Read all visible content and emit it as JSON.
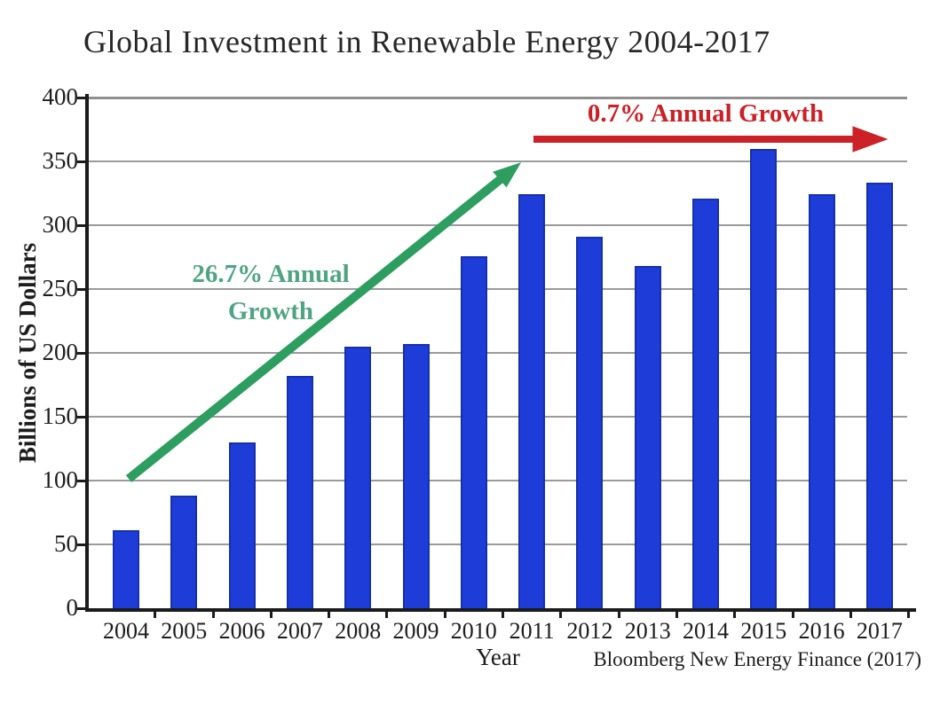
{
  "title": "Global Investment in Renewable Energy 2004-2017",
  "colors": {
    "bar": "#1e3dd8",
    "bar_border": "#1630ac",
    "green_arrow": "#2d9e60",
    "green_text": "#4fa583",
    "red": "#cb2127",
    "grid": "#9b9b9b",
    "axis": "#1b1b1b"
  },
  "annotations": {
    "green": {
      "label": "26.7% Annual Growth",
      "line1": "26.7% Annual",
      "line2": "Growth"
    },
    "red": {
      "label": "0.7% Annual Growth"
    }
  },
  "source": "Bloomberg New Energy Finance (2017)",
  "chart_data": {
    "type": "bar",
    "title": "Global Investment in Renewable Energy 2004-2017",
    "categories": [
      "2004",
      "2005",
      "2006",
      "2007",
      "2008",
      "2009",
      "2010",
      "2011",
      "2012",
      "2013",
      "2014",
      "2015",
      "2016",
      "2017"
    ],
    "values": [
      61,
      88,
      130,
      182,
      205,
      207,
      276,
      324,
      291,
      268,
      321,
      360,
      324,
      333
    ],
    "xlabel": "Year",
    "ylabel": "Billions of US Dollars",
    "ylim": [
      0,
      400
    ],
    "ytick_step": 50,
    "grid": true,
    "legend": "none",
    "bar_color": "#1e3dd8",
    "source": "Bloomberg New Energy Finance (2017)",
    "annotations": [
      {
        "text": "26.7% Annual Growth",
        "type": "arrow",
        "color": "#2d9e60",
        "from": {
          "x": "2004",
          "y": 100
        },
        "to": {
          "x": "2011",
          "y": 348
        }
      },
      {
        "text": "0.7% Annual Growth",
        "type": "arrow",
        "color": "#cb2127",
        "from": {
          "x": "2011",
          "y": 368
        },
        "to": {
          "x": "2017.6",
          "y": 368
        }
      }
    ]
  }
}
